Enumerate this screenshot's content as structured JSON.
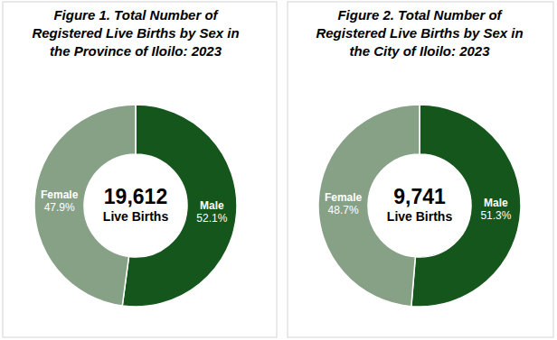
{
  "chart_data": [
    {
      "type": "pie",
      "title": "Figure 1. Total Number of Registered Live Births by Sex in the Province of Iloilo: 2023",
      "categories": [
        "Male",
        "Female"
      ],
      "values": [
        52.1,
        47.9
      ],
      "value_labels": [
        "52.1%",
        "47.9%"
      ],
      "colors": [
        "#14561b",
        "#87a187"
      ],
      "data_labels": true,
      "total": {
        "value": 19612,
        "label": "19,612"
      },
      "annotation": "Live Births"
    },
    {
      "type": "pie",
      "title": "Figure 2. Total Number of Registered Live Births by Sex in the City of Iloilo: 2023",
      "categories": [
        "Male",
        "Female"
      ],
      "values": [
        51.3,
        48.7
      ],
      "value_labels": [
        "51.3%",
        "48.7%"
      ],
      "colors": [
        "#14561b",
        "#87a187"
      ],
      "data_labels": true,
      "total": {
        "value": 9741,
        "label": "9,741"
      },
      "annotation": "Live Births"
    }
  ]
}
